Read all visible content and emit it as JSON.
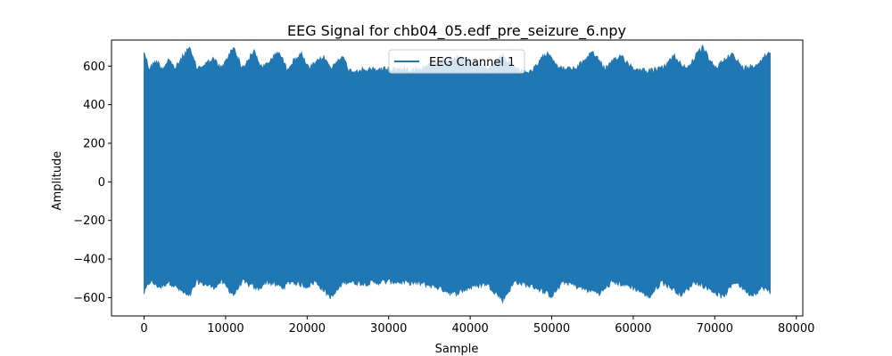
{
  "chart_data": {
    "type": "line",
    "title": "EEG Signal for chb04_05.edf_pre_seizure_6.npy",
    "xlabel": "Sample",
    "ylabel": "Amplitude",
    "xlim": [
      -4000,
      80800
    ],
    "ylim": [
      -695,
      735
    ],
    "xticks": [
      0,
      10000,
      20000,
      30000,
      40000,
      50000,
      60000,
      70000,
      80000
    ],
    "xtick_labels": [
      "0",
      "10000",
      "20000",
      "30000",
      "40000",
      "50000",
      "60000",
      "70000",
      "80000"
    ],
    "yticks": [
      -600,
      -400,
      -200,
      0,
      200,
      400,
      600
    ],
    "ytick_labels": [
      "−600",
      "−400",
      "−200",
      "0",
      "200",
      "400",
      "600"
    ],
    "grid": false,
    "legend_position": "top-center",
    "series": [
      {
        "name": "EEG Channel 1",
        "color": "#1f77b4",
        "x_range": [
          0,
          76800
        ],
        "sample_count": 76800,
        "typical_max": 590,
        "typical_min": -530,
        "peak_max": 720,
        "peak_min": -640,
        "upper_envelope": [
          [
            0,
            690
          ],
          [
            600,
            600
          ],
          [
            1500,
            640
          ],
          [
            2300,
            600
          ],
          [
            3000,
            650
          ],
          [
            3800,
            600
          ],
          [
            5500,
            710
          ],
          [
            6500,
            600
          ],
          [
            8500,
            650
          ],
          [
            9500,
            600
          ],
          [
            11000,
            715
          ],
          [
            12000,
            600
          ],
          [
            13500,
            690
          ],
          [
            14500,
            600
          ],
          [
            16500,
            690
          ],
          [
            17500,
            600
          ],
          [
            19200,
            680
          ],
          [
            20200,
            600
          ],
          [
            22000,
            660
          ],
          [
            23000,
            600
          ],
          [
            24200,
            670
          ],
          [
            25200,
            590
          ],
          [
            28000,
            595
          ],
          [
            30000,
            600
          ],
          [
            32000,
            595
          ],
          [
            34000,
            600
          ],
          [
            36500,
            640
          ],
          [
            38000,
            660
          ],
          [
            40000,
            640
          ],
          [
            42000,
            600
          ],
          [
            44000,
            665
          ],
          [
            45500,
            600
          ],
          [
            47500,
            580
          ],
          [
            49500,
            690
          ],
          [
            51000,
            600
          ],
          [
            53000,
            600
          ],
          [
            55000,
            690
          ],
          [
            56500,
            600
          ],
          [
            58500,
            670
          ],
          [
            60000,
            600
          ],
          [
            62000,
            590
          ],
          [
            63500,
            600
          ],
          [
            65000,
            665
          ],
          [
            66500,
            600
          ],
          [
            68500,
            710
          ],
          [
            70000,
            600
          ],
          [
            72000,
            680
          ],
          [
            73500,
            600
          ],
          [
            75000,
            620
          ],
          [
            76800,
            690
          ]
        ],
        "lower_envelope": [
          [
            0,
            -590
          ],
          [
            700,
            -530
          ],
          [
            2000,
            -560
          ],
          [
            3000,
            -530
          ],
          [
            5500,
            -610
          ],
          [
            6500,
            -530
          ],
          [
            8500,
            -560
          ],
          [
            9500,
            -530
          ],
          [
            11000,
            -600
          ],
          [
            12000,
            -530
          ],
          [
            14000,
            -570
          ],
          [
            15000,
            -530
          ],
          [
            17000,
            -560
          ],
          [
            18000,
            -530
          ],
          [
            20000,
            -555
          ],
          [
            21000,
            -530
          ],
          [
            23000,
            -615
          ],
          [
            24500,
            -530
          ],
          [
            27000,
            -540
          ],
          [
            30000,
            -530
          ],
          [
            34000,
            -540
          ],
          [
            36000,
            -560
          ],
          [
            38000,
            -595
          ],
          [
            40000,
            -560
          ],
          [
            42000,
            -540
          ],
          [
            44000,
            -625
          ],
          [
            45500,
            -530
          ],
          [
            48000,
            -560
          ],
          [
            50000,
            -605
          ],
          [
            51500,
            -530
          ],
          [
            54000,
            -570
          ],
          [
            56000,
            -590
          ],
          [
            57500,
            -530
          ],
          [
            60000,
            -560
          ],
          [
            62000,
            -610
          ],
          [
            63500,
            -530
          ],
          [
            66000,
            -600
          ],
          [
            67500,
            -530
          ],
          [
            69000,
            -560
          ],
          [
            71000,
            -610
          ],
          [
            72500,
            -530
          ],
          [
            74500,
            -600
          ],
          [
            76000,
            -560
          ],
          [
            76800,
            -590
          ]
        ]
      }
    ]
  }
}
